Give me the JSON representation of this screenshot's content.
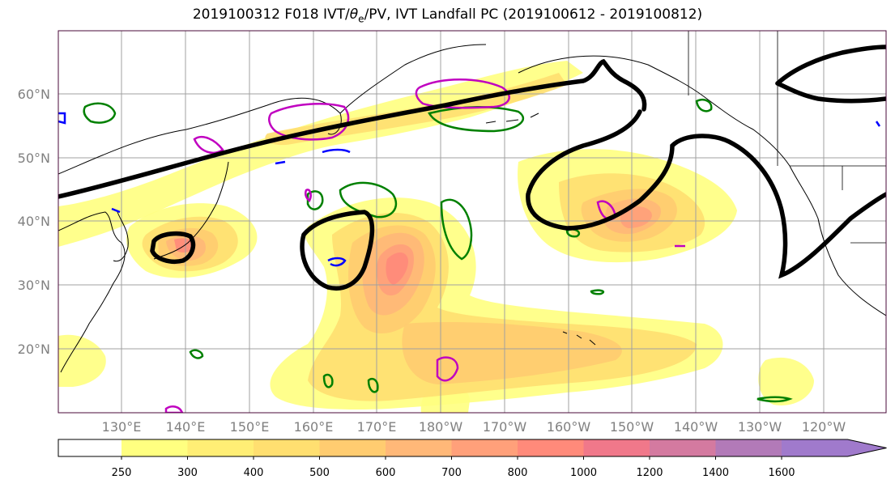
{
  "title": {
    "text": "2019100312 F018 IVT/θe/PV, IVT Landfall PC (2019100612 - 2019100812)",
    "prefix": "2019100312 F018 IVT/",
    "theta": "θ",
    "sub": "e",
    "suffix": "/PV, IVT Landfall PC (2019100612 - 2019100812)"
  },
  "map": {
    "lat_labels": [
      "20°N",
      "30°N",
      "40°N",
      "50°N",
      "60°N"
    ],
    "lon_labels": [
      "130°E",
      "140°E",
      "150°E",
      "160°E",
      "170°E",
      "180°W",
      "170°W",
      "160°W",
      "150°W",
      "140°W",
      "130°W",
      "120°W"
    ]
  },
  "colorbar": {
    "levels": [
      "250",
      "300",
      "400",
      "500",
      "600",
      "700",
      "800",
      "1000",
      "1200",
      "1400",
      "1600"
    ],
    "colors": [
      "#ffff80",
      "#ffee75",
      "#ffdf70",
      "#ffcc70",
      "#ffb878",
      "#ffa07a",
      "#ff8a7a",
      "#f0788a",
      "#d47aa0",
      "#b27ab8",
      "#a07acc"
    ]
  },
  "colors": {
    "ivt_palette": [
      "#ffff80",
      "#ffee75",
      "#ffdf70",
      "#ffcc70",
      "#ffb878",
      "#ffa07a",
      "#ff8a7a",
      "#f0788a"
    ],
    "theta_e_contour": "#008000",
    "pv_contour": "#c000c0",
    "negative_contour": "#0000ff",
    "landfall_pc_contour": "#000000",
    "coastline": "#000000",
    "gridline": "#a0a0a0"
  }
}
